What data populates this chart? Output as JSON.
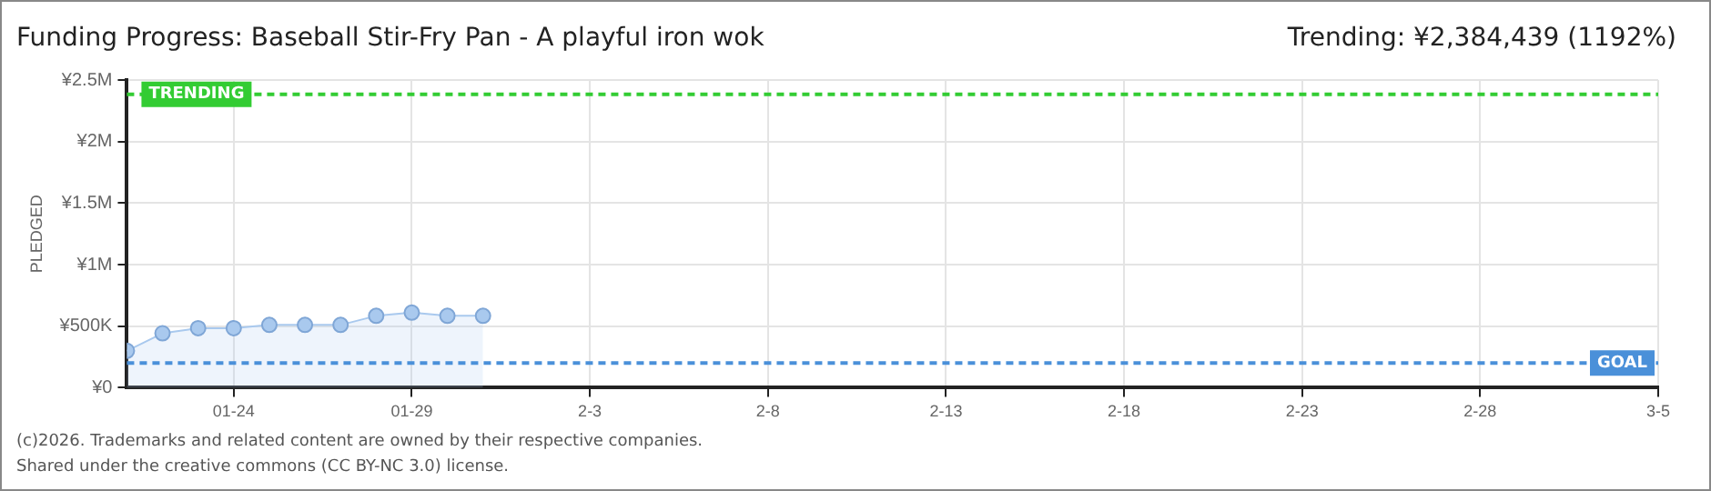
{
  "chart_data": {
    "type": "area",
    "title": "Funding Progress: Baseball Stir-Fry Pan - A playful iron wok",
    "ylabel": "PLEDGED",
    "annotations": [
      "Trending: ¥2,384,439 (1192%)",
      "(c)2026. Trademarks and related content are owned by their respective companies.",
      "Shared under the creative commons (CC BY-NC 3.0) license."
    ],
    "x": [
      "--01-21",
      "--01-22",
      "--01-23",
      "--01-24",
      "--01-25",
      "--01-26",
      "--01-27",
      "--01-28",
      "--01-29",
      "--01-30",
      "--01-31"
    ],
    "series": [
      {
        "color": "#a9c9ee",
        "values": [
          300000,
          442000,
          484000,
          484000,
          510000,
          510000,
          510000,
          584000,
          610000,
          584000,
          584000
        ]
      }
    ],
    "xlim": [
      "--01-21",
      "--03-05"
    ],
    "xticks": [
      {
        "value": "--01-24",
        "label": "01-24"
      },
      {
        "value": "--01-29",
        "label": "01-29"
      },
      {
        "value": "--02-03",
        "label": "2-3"
      },
      {
        "value": "--02-08",
        "label": "2-8"
      },
      {
        "value": "--02-13",
        "label": "2-13"
      },
      {
        "value": "--02-18",
        "label": "2-18"
      },
      {
        "value": "--02-23",
        "label": "2-23"
      },
      {
        "value": "--02-28",
        "label": "2-28"
      },
      {
        "value": "--03-05",
        "label": "3-5"
      }
    ],
    "ylim": [
      0,
      2500000
    ],
    "yticks": [
      {
        "value": 0,
        "label": "¥0"
      },
      {
        "value": 500000,
        "label": "¥500K"
      },
      {
        "value": 1000000,
        "label": "¥1M"
      },
      {
        "value": 1500000,
        "label": "¥1.5M"
      },
      {
        "value": 2000000,
        "label": "¥2M"
      },
      {
        "value": 2500000,
        "label": "¥2.5M"
      }
    ],
    "ref_lines": [
      {
        "axis": "y",
        "value": 2384439,
        "label": "TRENDING",
        "color": "#33cc33",
        "line_style": "dashed"
      },
      {
        "axis": "y",
        "value": 200000,
        "label": "GOAL",
        "color": "#4a90d9",
        "line_style": "dashed"
      }
    ],
    "grid": true,
    "legend": false,
    "marker": "circle",
    "line_style": "solid"
  }
}
